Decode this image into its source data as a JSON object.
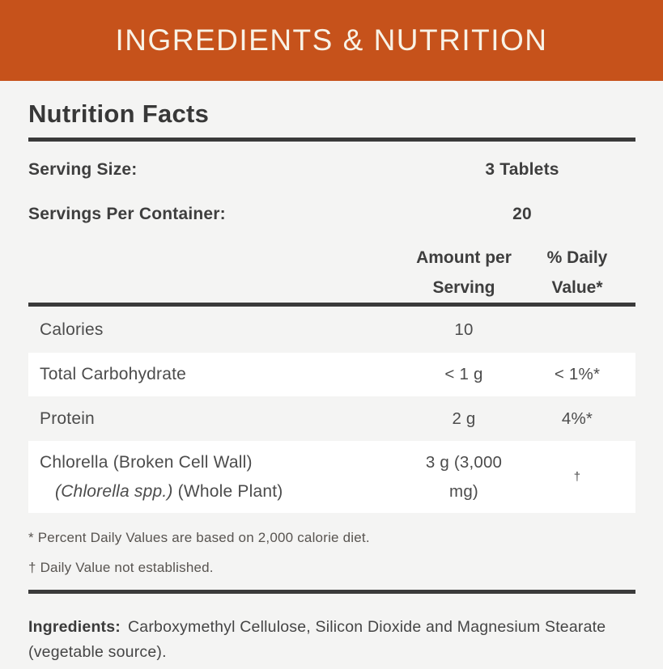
{
  "section_header": {
    "title": "INGREDIENTS & NUTRITION"
  },
  "colors": {
    "header_bg": "#C6521B",
    "header_text": "#F8F2E6",
    "page_bg": "#F4F4F3",
    "rule": "#3A3A3A",
    "row_stripe": "#FFFFFF",
    "heading_text": "#383838",
    "body_text": "#4C4C4C",
    "footnote_text": "#585450"
  },
  "nutrition_facts": {
    "title": "Nutrition Facts",
    "serving_info": [
      {
        "label": "Serving Size:",
        "value": "3 Tablets"
      },
      {
        "label": "Servings Per Container:",
        "value": "20"
      }
    ],
    "column_headers": {
      "amount_line1": "Amount per",
      "amount_line2": "Serving",
      "dv_line1": "% Daily",
      "dv_line2": "Value*"
    },
    "rows": [
      {
        "name": "Calories",
        "amount": "10",
        "dv": ""
      },
      {
        "name": "Total Carbohydrate",
        "amount": "< 1 g",
        "dv": "< 1%*"
      },
      {
        "name": "Protein",
        "amount": "2 g",
        "dv": "4%*"
      },
      {
        "name_line1": "Chlorella (Broken Cell Wall)",
        "name_line2_italic": "(Chlorella spp.)",
        "name_line2_rest": " (Whole Plant)",
        "amount": "3 g (3,000 mg)",
        "dv": "†"
      }
    ],
    "footnotes": [
      "* Percent Daily Values are based on 2,000 calorie diet.",
      "† Daily Value not established."
    ],
    "ingredients": {
      "label": "Ingredients:",
      "text": "Carboxymethyl Cellulose, Silicon Dioxide and Magnesium Stearate (vegetable source)."
    }
  }
}
